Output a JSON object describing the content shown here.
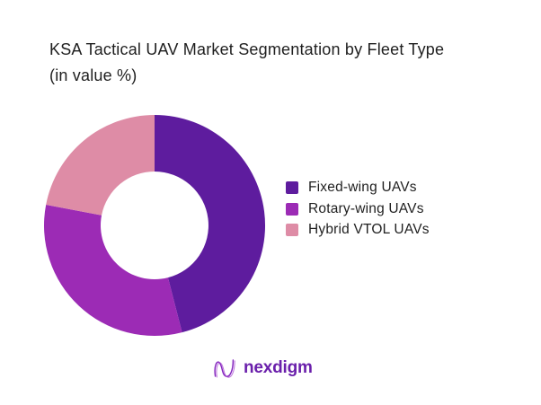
{
  "title": {
    "line1": "KSA Tactical UAV Market Segmentation by Fleet Type",
    "line2": "(in value %)"
  },
  "chart_data": {
    "type": "pie",
    "variant": "donut",
    "title": "KSA Tactical UAV Market Segmentation by Fleet Type (in value %)",
    "unit": "value %",
    "categories": [
      "Fixed-wing UAVs",
      "Rotary-wing UAVs",
      "Hybrid VTOL UAVs"
    ],
    "values": [
      46,
      32,
      22
    ],
    "colors": [
      "#5E1C9E",
      "#9C2BB5",
      "#DE8CA6"
    ],
    "start_angle_deg": 0,
    "direction": "clockwise",
    "inner_radius_ratio": 0.49,
    "legend_position": "right",
    "data_labels_shown": false
  },
  "legend": {
    "items": [
      {
        "label": "Fixed-wing UAVs",
        "color": "#5E1C9E"
      },
      {
        "label": "Rotary-wing UAVs",
        "color": "#9C2BB5"
      },
      {
        "label": "Hybrid VTOL UAVs",
        "color": "#DE8CA6"
      }
    ]
  },
  "footer": {
    "brand": "nexdigm"
  },
  "colors": {
    "text": "#1F1F1F",
    "brand_purple": "#6A1FAB",
    "background": "#FFFFFF"
  }
}
